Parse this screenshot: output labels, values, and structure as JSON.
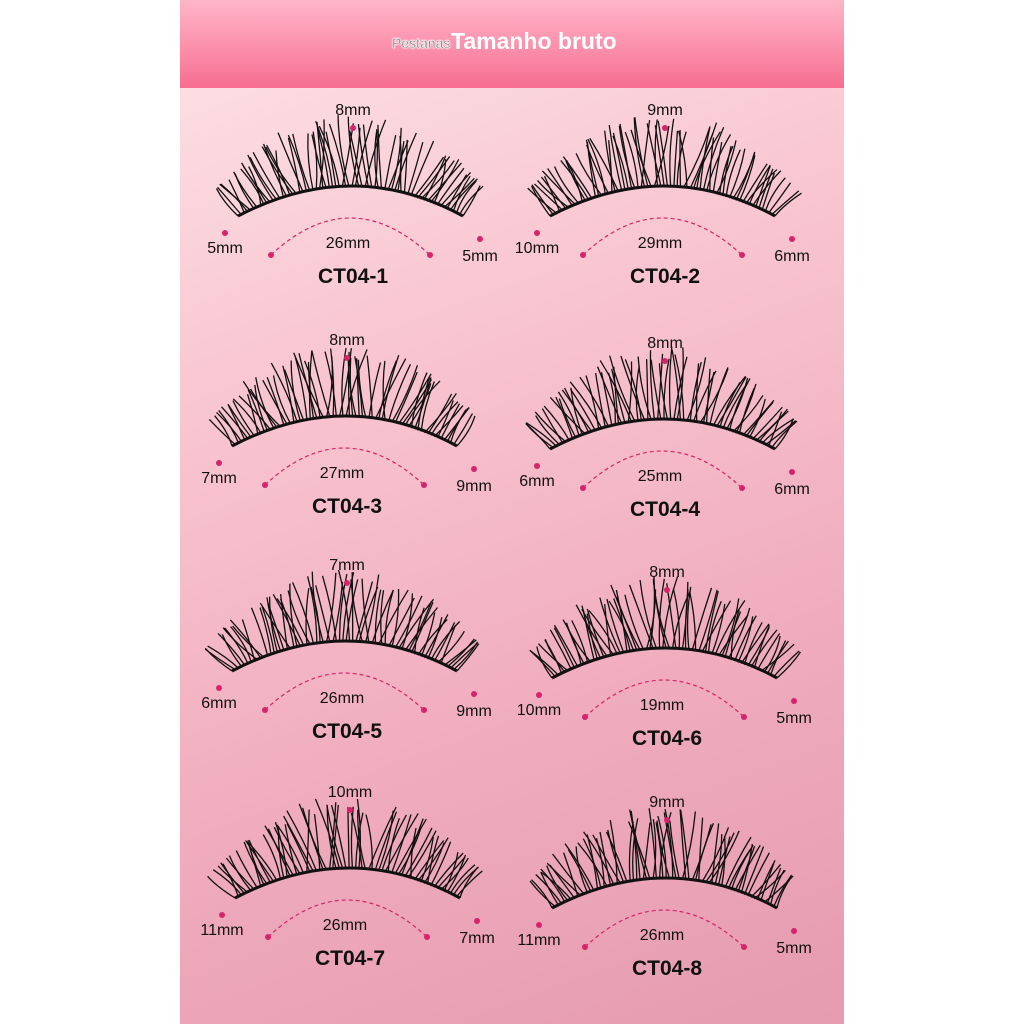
{
  "header": {
    "brand": "Pestanas",
    "title": "Tamanho bruto"
  },
  "colors": {
    "dot": "#d6246a",
    "lash": "#111111",
    "header": "#f76e92"
  },
  "items": [
    {
      "name": "CT04-1",
      "top": "8mm",
      "left": "5mm",
      "right": "5mm",
      "length": "26mm"
    },
    {
      "name": "CT04-2",
      "top": "9mm",
      "left": "10mm",
      "right": "6mm",
      "length": "29mm"
    },
    {
      "name": "CT04-3",
      "top": "8mm",
      "left": "7mm",
      "right": "9mm",
      "length": "27mm"
    },
    {
      "name": "CT04-4",
      "top": "8mm",
      "left": "6mm",
      "right": "6mm",
      "length": "25mm"
    },
    {
      "name": "CT04-5",
      "top": "7mm",
      "left": "6mm",
      "right": "9mm",
      "length": "26mm"
    },
    {
      "name": "CT04-6",
      "top": "8mm",
      "left": "10mm",
      "right": "5mm",
      "length": "19mm"
    },
    {
      "name": "CT04-7",
      "top": "10mm",
      "left": "11mm",
      "right": "7mm",
      "length": "26mm"
    },
    {
      "name": "CT04-8",
      "top": "9mm",
      "left": "11mm",
      "right": "5mm",
      "length": "26mm"
    }
  ]
}
